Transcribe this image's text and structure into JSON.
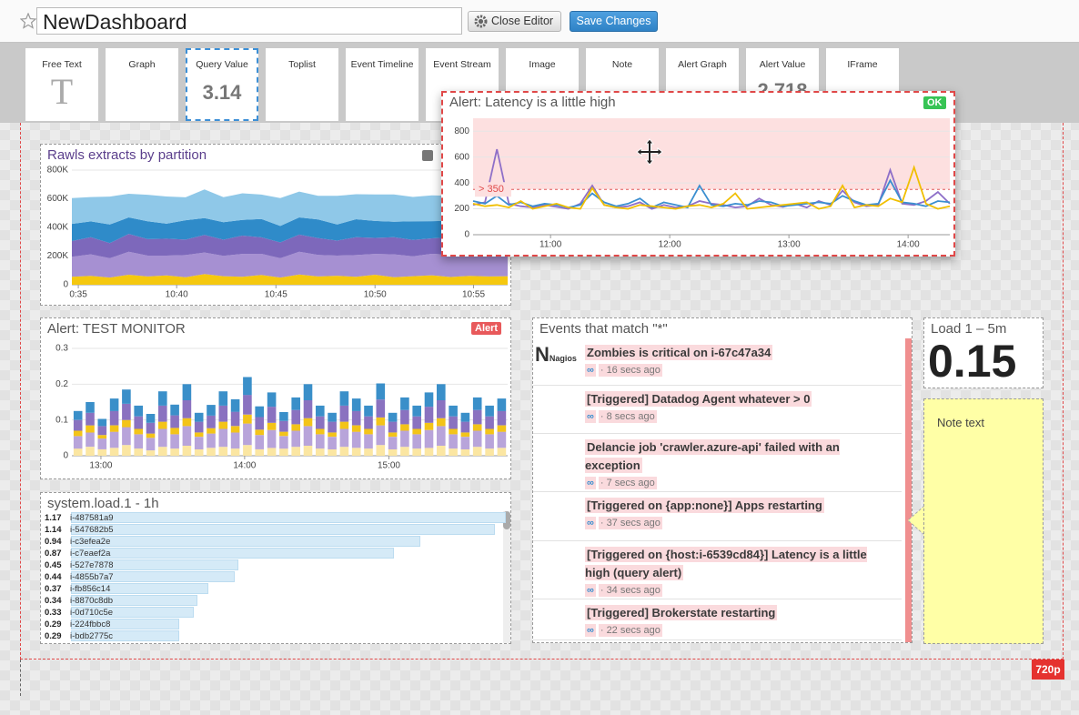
{
  "header": {
    "title": "NewDashboard",
    "close_button": "Close Editor",
    "save_button": "Save Changes"
  },
  "toolbar": {
    "items": [
      {
        "label": "Free Text",
        "icon_text": "T"
      },
      {
        "label": "Graph"
      },
      {
        "label": "Query Value",
        "icon_text": "3.14"
      },
      {
        "label": "Toplist"
      },
      {
        "label": "Event Timeline"
      },
      {
        "label": "Event Stream"
      },
      {
        "label": "Image"
      },
      {
        "label": "Note"
      },
      {
        "label": "Alert Graph"
      },
      {
        "label": "Alert Value",
        "icon_text": "2.718"
      },
      {
        "label": "IFrame"
      }
    ]
  },
  "canvas": {
    "size_label": "720p"
  },
  "widgets": {
    "rawls": {
      "title": "Rawls extracts by partition",
      "ylim": [
        0,
        800000
      ],
      "yticks": [
        0,
        {
          "value": 200000,
          "label": "200K"
        },
        {
          "value": 400000,
          "label": "400K"
        },
        {
          "value": 600000,
          "label": "600K"
        },
        {
          "value": 800000,
          "label": "800K"
        }
      ],
      "xlim": [
        0,
        23
      ],
      "xticks": [
        {
          "value": 0.34,
          "label": "0:35"
        },
        {
          "value": 5.53,
          "label": "10:40"
        },
        {
          "value": 10.77,
          "label": "10:45"
        },
        {
          "value": 16,
          "label": "10:50"
        },
        {
          "value": 21.2,
          "label": "10:55"
        }
      ],
      "series": [
        {
          "color": "#f5c80f",
          "values": [
            55000,
            62000,
            50000,
            70000,
            58000,
            65000,
            52000,
            75000,
            60000,
            55000,
            68000,
            50000,
            72000,
            58000,
            63000,
            55000,
            70000,
            52000,
            60000,
            66000,
            54000,
            62000,
            58000,
            60000
          ]
        },
        {
          "color": "#a690d2",
          "values": [
            140000,
            150000,
            135000,
            160000,
            145000,
            138000,
            155000,
            150000,
            142000,
            160000,
            148000,
            135000,
            158000,
            150000,
            140000,
            152000,
            145000,
            160000,
            138000,
            150000,
            155000,
            142000,
            148000,
            150000
          ]
        },
        {
          "color": "#7d68bb",
          "values": [
            110000,
            120000,
            105000,
            125000,
            115000,
            118000,
            108000,
            122000,
            112000,
            128000,
            115000,
            110000,
            120000,
            118000,
            105000,
            125000,
            112000,
            120000,
            115000,
            108000,
            122000,
            118000,
            110000,
            115000
          ]
        },
        {
          "color": "#2f8bc9",
          "values": [
            120000,
            110000,
            130000,
            115000,
            125000,
            105000,
            135000,
            118000,
            122000,
            110000,
            128000,
            115000,
            120000,
            130000,
            112000,
            125000,
            118000,
            108000,
            130000,
            120000,
            115000,
            125000,
            118000,
            122000
          ]
        },
        {
          "color": "#8fc8e8",
          "values": [
            180000,
            170000,
            195000,
            165000,
            185000,
            190000,
            160000,
            200000,
            175000,
            185000,
            170000,
            195000,
            180000,
            165000,
            200000,
            175000,
            185000,
            190000,
            170000,
            180000,
            175000,
            185000,
            190000,
            178000
          ]
        }
      ]
    },
    "latency": {
      "title": "Alert: Latency is a little high",
      "status": "OK",
      "threshold": 350,
      "threshold_label": "> 350",
      "ylim": [
        0,
        900
      ],
      "yticks": [
        0,
        200,
        400,
        600,
        800
      ],
      "xlim": [
        621,
        861
      ],
      "xticks": [
        {
          "value": 660,
          "label": "11:00"
        },
        {
          "value": 720,
          "label": "12:00"
        },
        {
          "value": 780,
          "label": "13:00"
        },
        {
          "value": 840,
          "label": "14:00"
        }
      ],
      "x": [
        621,
        627,
        633,
        639,
        645,
        651,
        657,
        663,
        669,
        675,
        681,
        687,
        693,
        699,
        705,
        711,
        717,
        723,
        729,
        735,
        741,
        747,
        753,
        759,
        765,
        771,
        777,
        783,
        789,
        795,
        801,
        807,
        813,
        819,
        825,
        831,
        837,
        843,
        849,
        855,
        861
      ],
      "series": [
        {
          "color": "#8e6fc8",
          "values": [
            230,
            250,
            660,
            240,
            220,
            210,
            230,
            215,
            200,
            240,
            380,
            230,
            210,
            220,
            250,
            200,
            230,
            210,
            220,
            260,
            240,
            230,
            210,
            220,
            280,
            230,
            215,
            240,
            210,
            260,
            230,
            340,
            250,
            220,
            230,
            500,
            240,
            230,
            260,
            330,
            240
          ]
        },
        {
          "color": "#3b8fd0",
          "values": [
            260,
            240,
            300,
            230,
            250,
            220,
            240,
            230,
            210,
            230,
            320,
            250,
            220,
            240,
            280,
            210,
            250,
            230,
            210,
            380,
            230,
            220,
            240,
            230,
            260,
            250,
            220,
            230,
            240,
            250,
            240,
            300,
            260,
            230,
            240,
            420,
            250,
            240,
            220,
            260,
            250
          ]
        },
        {
          "color": "#f0bf00",
          "values": [
            240,
            220,
            230,
            210,
            260,
            200,
            220,
            240,
            210,
            200,
            360,
            230,
            210,
            200,
            230,
            220,
            210,
            200,
            220,
            230,
            210,
            240,
            320,
            200,
            210,
            220,
            230,
            240,
            250,
            200,
            220,
            380,
            210,
            230,
            220,
            280,
            250,
            520,
            240,
            200,
            220
          ]
        }
      ]
    },
    "monitor": {
      "title": "Alert: TEST MONITOR",
      "status": "Alert",
      "ylim": [
        0,
        0.3
      ],
      "yticks": [
        0,
        0.1,
        0.2,
        0.3
      ],
      "xlim": [
        0,
        36
      ],
      "xticks": [
        {
          "value": 2.4,
          "label": "13:00"
        },
        {
          "value": 14.27,
          "label": "14:00"
        },
        {
          "value": 26.19,
          "label": "15:00"
        }
      ],
      "series": [
        {
          "color": "#fbe6a2",
          "values": [
            0.02,
            0.025,
            0.018,
            0.022,
            0.03,
            0.02,
            0.015,
            0.025,
            0.02,
            0.028,
            0.018,
            0.022,
            0.025,
            0.02,
            0.03,
            0.018,
            0.022,
            0.02,
            0.025,
            0.028,
            0.02,
            0.018,
            0.025,
            0.022,
            0.02,
            0.03,
            0.018,
            0.025,
            0.02,
            0.022,
            0.028,
            0.02,
            0.018,
            0.025,
            0.02,
            0.022
          ]
        },
        {
          "color": "#b8a4da",
          "values": [
            0.035,
            0.04,
            0.03,
            0.045,
            0.05,
            0.04,
            0.035,
            0.05,
            0.04,
            0.055,
            0.035,
            0.04,
            0.05,
            0.045,
            0.06,
            0.04,
            0.05,
            0.035,
            0.045,
            0.055,
            0.04,
            0.035,
            0.05,
            0.045,
            0.04,
            0.055,
            0.035,
            0.045,
            0.04,
            0.05,
            0.055,
            0.04,
            0.035,
            0.045,
            0.04,
            0.045
          ]
        },
        {
          "color": "#f3c419",
          "values": [
            0.015,
            0.02,
            0.01,
            0.018,
            0.02,
            0.015,
            0.012,
            0.02,
            0.018,
            0.022,
            0.012,
            0.015,
            0.02,
            0.018,
            0.025,
            0.015,
            0.02,
            0.012,
            0.018,
            0.022,
            0.015,
            0.012,
            0.02,
            0.018,
            0.015,
            0.022,
            0.012,
            0.018,
            0.015,
            0.02,
            0.022,
            0.015,
            0.012,
            0.018,
            0.015,
            0.018
          ]
        },
        {
          "color": "#8a72c0",
          "values": [
            0.03,
            0.035,
            0.025,
            0.04,
            0.045,
            0.035,
            0.03,
            0.045,
            0.035,
            0.05,
            0.03,
            0.035,
            0.045,
            0.04,
            0.055,
            0.035,
            0.045,
            0.03,
            0.04,
            0.05,
            0.035,
            0.03,
            0.045,
            0.04,
            0.035,
            0.05,
            0.03,
            0.04,
            0.035,
            0.045,
            0.05,
            0.035,
            0.03,
            0.04,
            0.035,
            0.04
          ]
        },
        {
          "color": "#3a8fc9",
          "values": [
            0.025,
            0.03,
            0.02,
            0.035,
            0.04,
            0.03,
            0.025,
            0.04,
            0.03,
            0.045,
            0.025,
            0.03,
            0.04,
            0.035,
            0.05,
            0.03,
            0.04,
            0.025,
            0.035,
            0.045,
            0.03,
            0.025,
            0.04,
            0.035,
            0.03,
            0.045,
            0.025,
            0.035,
            0.03,
            0.04,
            0.045,
            0.03,
            0.025,
            0.035,
            0.03,
            0.035
          ]
        }
      ]
    },
    "toplist": {
      "title": "system.load.1 - 1h",
      "rows": [
        {
          "value": 1.17,
          "name": "i-487581a9"
        },
        {
          "value": 1.14,
          "name": "i-547682b5"
        },
        {
          "value": 0.94,
          "name": "i-c3efea2e"
        },
        {
          "value": 0.87,
          "name": "i-c7eaef2a"
        },
        {
          "value": 0.45,
          "name": "i-527e7878"
        },
        {
          "value": 0.44,
          "name": "i-4855b7a7"
        },
        {
          "value": 0.37,
          "name": "i-fb856c14"
        },
        {
          "value": 0.34,
          "name": "i-8870c8db"
        },
        {
          "value": 0.33,
          "name": "i-0d710c5e"
        },
        {
          "value": 0.29,
          "name": "i-224fbbc8"
        },
        {
          "value": 0.29,
          "name": "i-bdb2775c"
        }
      ]
    },
    "events": {
      "title": "Events that match \"*\"",
      "items": [
        {
          "source": "nagios",
          "icon_title": "N",
          "icon_caption": "Nagios",
          "title": "Zombies is critical on i-67c47a34",
          "link": "∞",
          "time": "· 16 secs ago"
        },
        {
          "source": "warning",
          "title": "[Triggered] Datadog Agent whatever > 0",
          "link": "∞",
          "time": "· 8 secs ago"
        },
        {
          "source": "datadog",
          "title": "Delancie job 'crawler.azure-api' failed with an exception",
          "link": "∞",
          "time": "· 7 secs ago"
        },
        {
          "source": "warning",
          "title": "[Triggered on {app:none}] Apps restarting",
          "link": "∞",
          "time": "· 37 secs ago"
        },
        {
          "source": "warning",
          "title": "[Triggered on {host:i-6539cd84}] Latency is a little high (query alert)",
          "link": "∞",
          "time": "· 34 secs ago"
        },
        {
          "source": "warning",
          "title": "[Triggered] Brokerstate restarting",
          "link": "∞",
          "time": "· 22 secs ago"
        }
      ]
    },
    "load": {
      "title": "Load 1 – 5m",
      "value": 0.15
    },
    "note": {
      "text": "Note text"
    }
  }
}
